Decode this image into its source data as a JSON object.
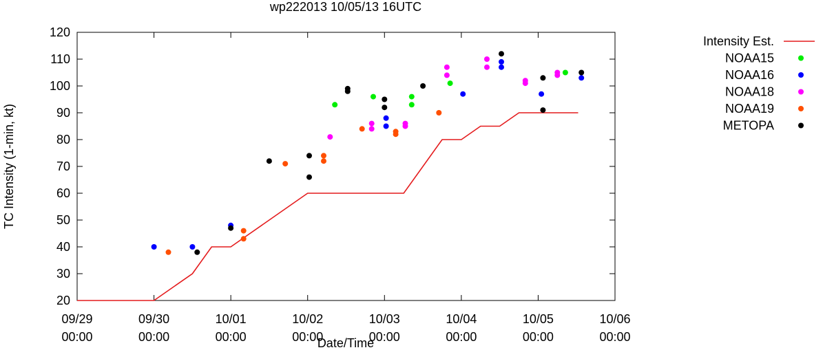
{
  "chart_data": {
    "type": "line",
    "title": "wp222013 10/05/13 16UTC",
    "xlabel": "Date/Time",
    "ylabel": "TC Intensity (1-min, kt)",
    "xlim": [
      0,
      168
    ],
    "ylim": [
      20,
      120
    ],
    "x_units": "hours since 09/29 00:00",
    "x_ticks": [
      {
        "x": 0,
        "date": "09/29",
        "time": "00:00"
      },
      {
        "x": 24,
        "date": "09/30",
        "time": "00:00"
      },
      {
        "x": 48,
        "date": "10/01",
        "time": "00:00"
      },
      {
        "x": 72,
        "date": "10/02",
        "time": "00:00"
      },
      {
        "x": 96,
        "date": "10/03",
        "time": "00:00"
      },
      {
        "x": 120,
        "date": "10/04",
        "time": "00:00"
      },
      {
        "x": 144,
        "date": "10/05",
        "time": "00:00"
      },
      {
        "x": 168,
        "date": "10/06",
        "time": "00:00"
      }
    ],
    "y_ticks": [
      "20",
      "30",
      "40",
      "50",
      "60",
      "70",
      "80",
      "90",
      "100",
      "110",
      "120"
    ],
    "grid": false,
    "legend_position": "right",
    "series": [
      {
        "name": "Intensity Est.",
        "kind": "line",
        "color": "#e41a1c",
        "x": [
          0,
          24,
          36,
          42,
          48,
          72,
          102,
          114,
          120,
          126,
          132,
          138,
          144,
          156,
          156.5
        ],
        "y": [
          20,
          20,
          30,
          40,
          40,
          60,
          60,
          80,
          80,
          85,
          85,
          90,
          90,
          90,
          90
        ]
      },
      {
        "name": "NOAA15",
        "kind": "points",
        "color": "#00ee00",
        "x": [
          80.5,
          92.5,
          104.5,
          104.5,
          116.5,
          152.5
        ],
        "y": [
          93,
          96,
          96,
          93,
          101,
          105
        ]
      },
      {
        "name": "NOAA16",
        "kind": "points",
        "color": "#0000ff",
        "x": [
          24,
          36,
          48,
          96.5,
          96.5,
          120.5,
          132.5,
          132.5,
          145,
          157.5
        ],
        "y": [
          40,
          40,
          48,
          88,
          85,
          97,
          109,
          107,
          97,
          103
        ]
      },
      {
        "name": "NOAA18",
        "kind": "points",
        "color": "#ff00ff",
        "x": [
          79,
          92,
          92,
          102.5,
          102.5,
          115.5,
          115.5,
          128,
          128,
          140,
          140,
          150,
          150
        ],
        "y": [
          81,
          86,
          84,
          86,
          85,
          107,
          104,
          110,
          107,
          102,
          101,
          105,
          104
        ]
      },
      {
        "name": "NOAA19",
        "kind": "points",
        "color": "#ff4f00",
        "x": [
          28.5,
          52,
          52,
          65,
          77,
          77,
          89,
          99.5,
          99.5,
          113
        ],
        "y": [
          38,
          46,
          43,
          71,
          74,
          72,
          84,
          83,
          82,
          90
        ]
      },
      {
        "name": "METOPA",
        "kind": "points",
        "color": "#000000",
        "x": [
          37.5,
          48,
          60,
          72.5,
          72.5,
          84.5,
          84.5,
          96,
          96,
          108,
          132.5,
          145.5,
          145.5,
          157.5
        ],
        "y": [
          38,
          47,
          72,
          74,
          66,
          99,
          98,
          95,
          92,
          100,
          112,
          103,
          91,
          105
        ]
      }
    ]
  }
}
